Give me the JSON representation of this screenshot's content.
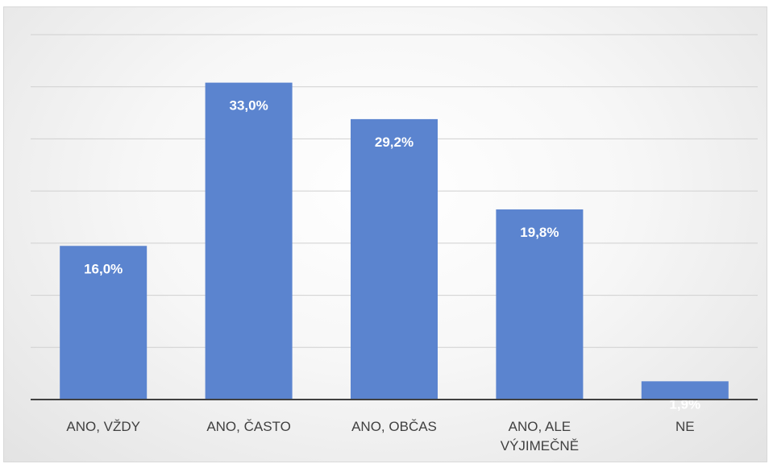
{
  "chart_data": {
    "type": "bar",
    "categories": [
      [
        "ANO, VŽDY"
      ],
      [
        "ANO, ČASTO"
      ],
      [
        "ANO, OBČAS"
      ],
      [
        "ANO, ALE",
        "VÝJIMEČNĚ"
      ],
      [
        "NE"
      ]
    ],
    "values": [
      16.0,
      33.0,
      29.2,
      19.8,
      1.9
    ],
    "data_labels": [
      "16,0%",
      "33,0%",
      "29,2%",
      "19,8%",
      "1,9%"
    ],
    "unit": "%",
    "ylim": [
      0,
      38
    ],
    "grid": true,
    "legend": "none",
    "colors": {
      "bar": "#5b84cf",
      "label": "#ffffff",
      "axis": "#404040",
      "grid": "#d0d0d0"
    }
  }
}
